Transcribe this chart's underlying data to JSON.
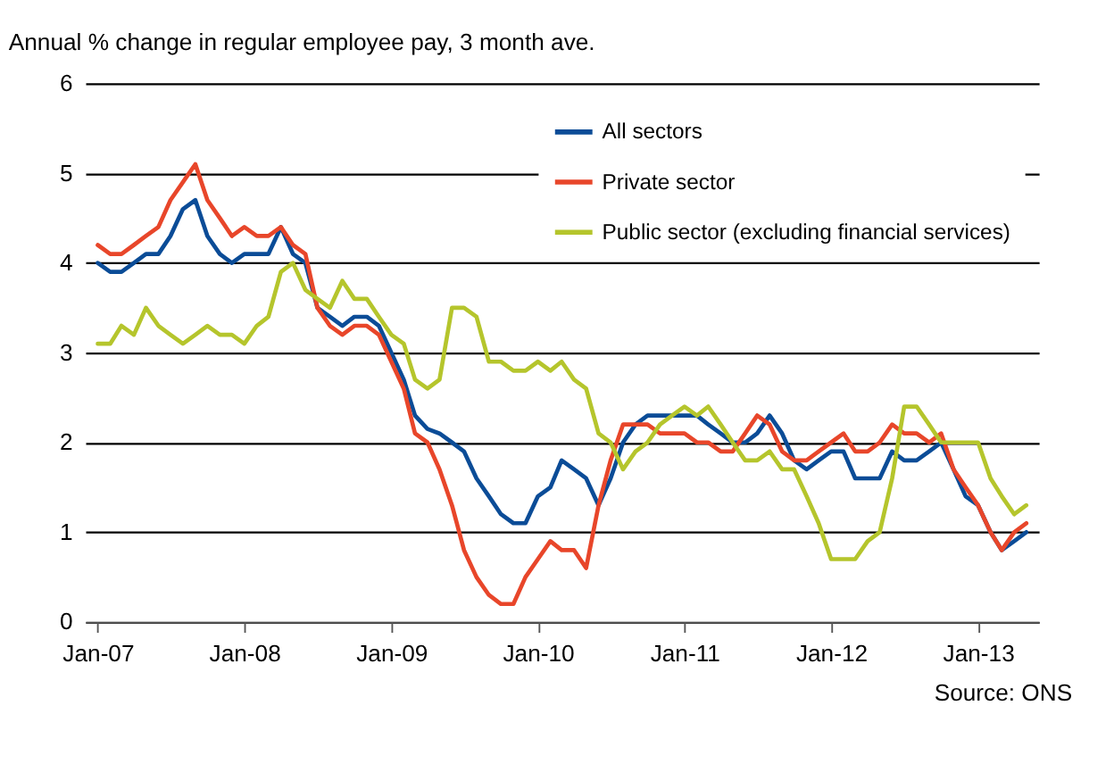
{
  "chart_data": {
    "type": "line",
    "title": "Annual % change in regular employee pay, 3 month ave.",
    "x": [
      "2007-01",
      "2007-02",
      "2007-03",
      "2007-04",
      "2007-05",
      "2007-06",
      "2007-07",
      "2007-08",
      "2007-09",
      "2007-10",
      "2007-11",
      "2007-12",
      "2008-01",
      "2008-02",
      "2008-03",
      "2008-04",
      "2008-05",
      "2008-06",
      "2008-07",
      "2008-08",
      "2008-09",
      "2008-10",
      "2008-11",
      "2008-12",
      "2009-01",
      "2009-02",
      "2009-03",
      "2009-04",
      "2009-05",
      "2009-06",
      "2009-07",
      "2009-08",
      "2009-09",
      "2009-10",
      "2009-11",
      "2009-12",
      "2010-01",
      "2010-02",
      "2010-03",
      "2010-04",
      "2010-05",
      "2010-06",
      "2010-07",
      "2010-08",
      "2010-09",
      "2010-10",
      "2010-11",
      "2010-12",
      "2011-01",
      "2011-02",
      "2011-03",
      "2011-04",
      "2011-05",
      "2011-06",
      "2011-07",
      "2011-08",
      "2011-09",
      "2011-10",
      "2011-11",
      "2011-12",
      "2012-01",
      "2012-02",
      "2012-03",
      "2012-04",
      "2012-05",
      "2012-06",
      "2012-07",
      "2012-08",
      "2012-09",
      "2012-10",
      "2012-11",
      "2012-12",
      "2013-01",
      "2013-02",
      "2013-03",
      "2013-04",
      "2013-05"
    ],
    "series": [
      {
        "name": "All sectors",
        "color": "#0b4c97",
        "values": [
          4.0,
          3.9,
          3.9,
          4.0,
          4.1,
          4.1,
          4.3,
          4.6,
          4.7,
          4.3,
          4.1,
          4.0,
          4.1,
          4.1,
          4.1,
          4.4,
          4.1,
          4.0,
          3.5,
          3.4,
          3.3,
          3.4,
          3.4,
          3.3,
          3.0,
          2.7,
          2.3,
          2.15,
          2.1,
          2.0,
          1.9,
          1.6,
          1.4,
          1.2,
          1.1,
          1.1,
          1.4,
          1.5,
          1.8,
          1.7,
          1.6,
          1.3,
          1.6,
          2.0,
          2.2,
          2.3,
          2.3,
          2.3,
          2.3,
          2.3,
          2.2,
          2.1,
          2.0,
          2.0,
          2.1,
          2.3,
          2.1,
          1.8,
          1.7,
          1.8,
          1.9,
          1.9,
          1.6,
          1.6,
          1.6,
          1.9,
          1.8,
          1.8,
          1.9,
          2.0,
          1.7,
          1.4,
          1.3,
          1.0,
          0.8,
          0.9,
          1.0
        ]
      },
      {
        "name": "Private sector",
        "color": "#e8462a",
        "values": [
          4.2,
          4.1,
          4.1,
          4.2,
          4.3,
          4.4,
          4.7,
          4.9,
          5.1,
          4.7,
          4.5,
          4.3,
          4.4,
          4.3,
          4.3,
          4.4,
          4.2,
          4.1,
          3.5,
          3.3,
          3.2,
          3.3,
          3.3,
          3.2,
          2.9,
          2.6,
          2.1,
          2.0,
          1.7,
          1.3,
          0.8,
          0.5,
          0.3,
          0.2,
          0.2,
          0.5,
          0.7,
          0.9,
          0.8,
          0.8,
          0.6,
          1.3,
          1.8,
          2.2,
          2.2,
          2.2,
          2.1,
          2.1,
          2.1,
          2.0,
          2.0,
          1.9,
          1.9,
          2.1,
          2.3,
          2.2,
          1.9,
          1.8,
          1.8,
          1.9,
          2.0,
          2.1,
          1.9,
          1.9,
          2.0,
          2.2,
          2.1,
          2.1,
          2.0,
          2.1,
          1.7,
          1.5,
          1.3,
          1.0,
          0.8,
          1.0,
          1.1
        ]
      },
      {
        "name": "Public sector (excluding financial services)",
        "color": "#b5c52c",
        "values": [
          3.1,
          3.1,
          3.3,
          3.2,
          3.5,
          3.3,
          3.2,
          3.1,
          3.2,
          3.3,
          3.2,
          3.2,
          3.1,
          3.3,
          3.4,
          3.9,
          4.0,
          3.7,
          3.6,
          3.5,
          3.8,
          3.6,
          3.6,
          3.4,
          3.2,
          3.1,
          2.7,
          2.6,
          2.7,
          3.5,
          3.5,
          3.4,
          2.9,
          2.9,
          2.8,
          2.8,
          2.9,
          2.8,
          2.9,
          2.7,
          2.6,
          2.1,
          2.0,
          1.7,
          1.9,
          2.0,
          2.2,
          2.3,
          2.4,
          2.3,
          2.4,
          2.2,
          2.0,
          1.8,
          1.8,
          1.9,
          1.7,
          1.7,
          1.4,
          1.1,
          0.7,
          0.7,
          0.7,
          0.9,
          1.0,
          1.6,
          2.4,
          2.4,
          2.2,
          2.0,
          2.0,
          2.0,
          2.0,
          1.6,
          1.4,
          1.2,
          1.3
        ]
      }
    ],
    "xlim": [
      "2006-12",
      "2013-06"
    ],
    "xticks": [
      {
        "value": "2007-01",
        "label": "Jan-07"
      },
      {
        "value": "2008-01",
        "label": "Jan-08"
      },
      {
        "value": "2009-01",
        "label": "Jan-09"
      },
      {
        "value": "2010-01",
        "label": "Jan-10"
      },
      {
        "value": "2011-01",
        "label": "Jan-11"
      },
      {
        "value": "2012-01",
        "label": "Jan-12"
      },
      {
        "value": "2013-01",
        "label": "Jan-13"
      }
    ],
    "ylim": [
      0,
      6
    ],
    "yticks": [
      0,
      1,
      2,
      3,
      4,
      5,
      6
    ],
    "grid": "y",
    "legend": "top right",
    "marker": "none",
    "line_style": "solid",
    "annotations": [
      "Source: ONS"
    ]
  }
}
